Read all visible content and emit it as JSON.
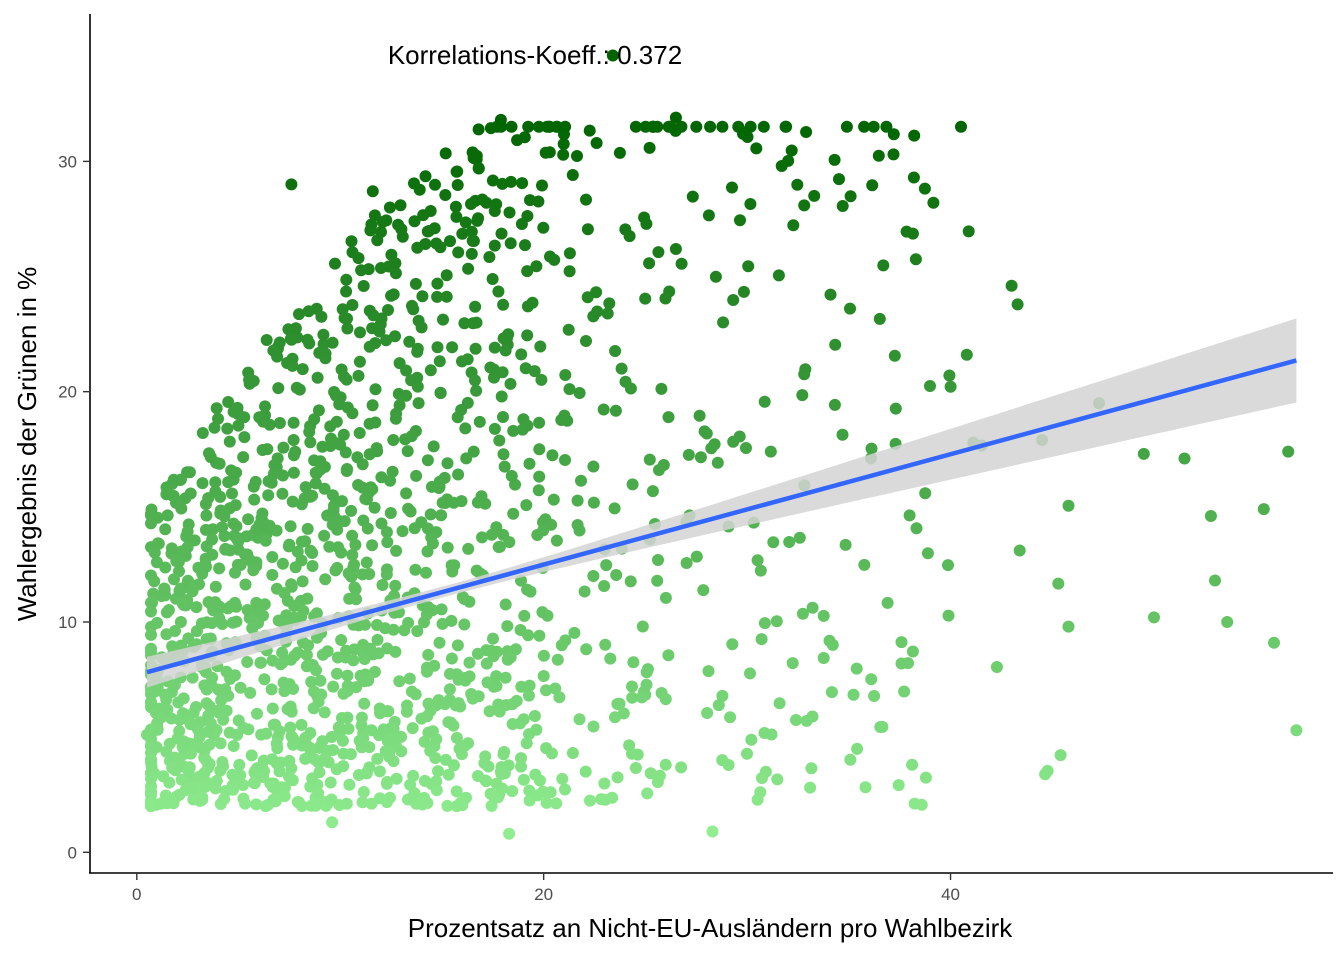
{
  "chart_data": {
    "type": "scatter",
    "title": "",
    "xlabel": "Prozentsatz an Nicht-EU-Ausländern pro Wahlbezirk",
    "ylabel": "Wahlergebnis der Grünen in %",
    "annotation": "Korrelations-Koeff.: 0.372",
    "x_ticks": [
      "0",
      "20",
      "40"
    ],
    "y_ticks": [
      "0",
      "10",
      "20",
      "30"
    ],
    "xlim": [
      -2.3,
      58.8
    ],
    "ylim": [
      -0.9,
      36.4
    ],
    "grid": false,
    "legend": "none",
    "color_low": "#90ee90",
    "color_high": "#006400",
    "line_color": "#3366ff",
    "band_color": "#d3d3d3",
    "regression": {
      "intercept": 7.7,
      "slope": 0.2396,
      "x_range": [
        0.5,
        57.0
      ],
      "se_at_mean": 0.12,
      "se_slope": 0.022,
      "x_mean": 15.0
    },
    "n_points_total": 1600,
    "highlighted_points": [
      [
        0.5,
        5.1
      ],
      [
        1.3,
        3.3
      ],
      [
        1.5,
        6.2
      ],
      [
        2.1,
        2.5
      ],
      [
        2.8,
        8.9
      ],
      [
        3.4,
        12.4
      ],
      [
        7.6,
        29.0
      ],
      [
        10.9,
        25.8
      ],
      [
        11.6,
        28.7
      ],
      [
        17.9,
        31.8
      ],
      [
        20.3,
        30.4
      ],
      [
        22.6,
        30.8
      ],
      [
        26.5,
        31.9
      ],
      [
        29.8,
        31.2
      ],
      [
        31.7,
        29.8
      ],
      [
        33.3,
        28.5
      ],
      [
        38.2,
        29.3
      ],
      [
        40.8,
        21.6
      ],
      [
        43.0,
        24.6
      ],
      [
        44.5,
        17.9
      ],
      [
        47.3,
        19.5
      ],
      [
        49.5,
        17.3
      ],
      [
        50.0,
        10.2
      ],
      [
        51.5,
        17.1
      ],
      [
        52.8,
        14.6
      ],
      [
        53.0,
        11.8
      ],
      [
        53.6,
        10.0
      ],
      [
        55.4,
        14.9
      ],
      [
        55.9,
        9.1
      ],
      [
        56.6,
        17.4
      ],
      [
        57.0,
        5.3
      ],
      [
        28.3,
        0.9
      ],
      [
        18.3,
        0.8
      ],
      [
        9.6,
        1.3
      ]
    ]
  }
}
